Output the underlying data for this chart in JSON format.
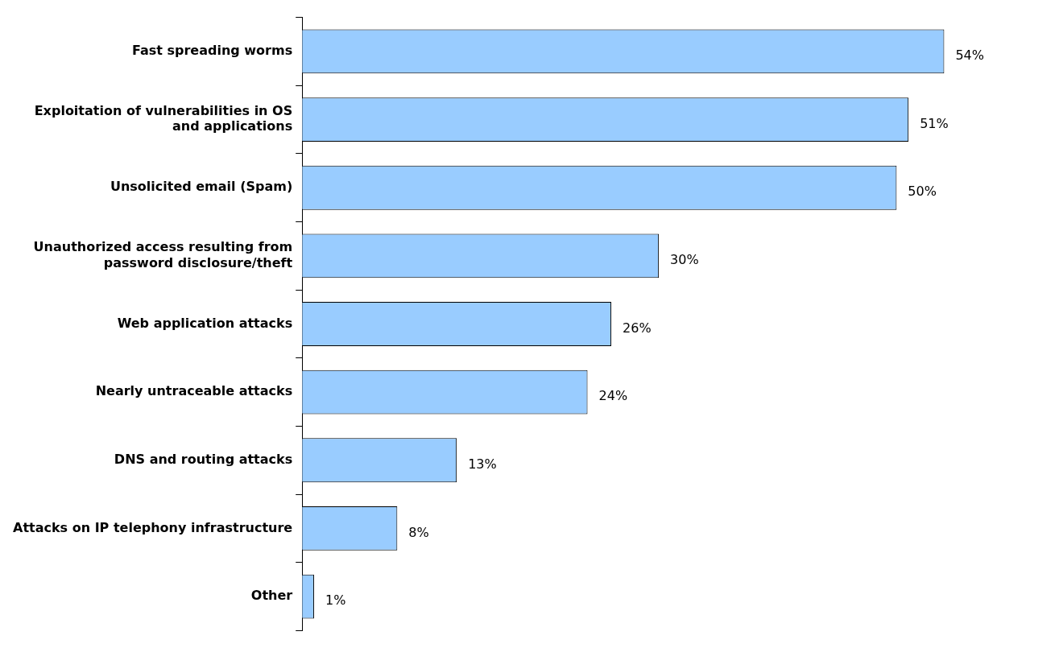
{
  "chart_data": {
    "type": "bar",
    "orientation": "horizontal",
    "categories": [
      "Fast spreading worms",
      "Exploitation of vulnerabilities in OS and applications",
      "Unsolicited email (Spam)",
      "Unauthorized access resulting from password disclosure/theft",
      "Web application attacks",
      "Nearly untraceable attacks",
      "DNS and routing attacks",
      "Attacks on IP telephony infrastructure",
      "Other"
    ],
    "values": [
      54,
      51,
      50,
      30,
      26,
      24,
      13,
      8,
      1
    ],
    "value_labels": [
      "54%",
      "51%",
      "50%",
      "30%",
      "26%",
      "24%",
      "13%",
      "8%",
      "1%"
    ],
    "color": "#99ccff"
  }
}
